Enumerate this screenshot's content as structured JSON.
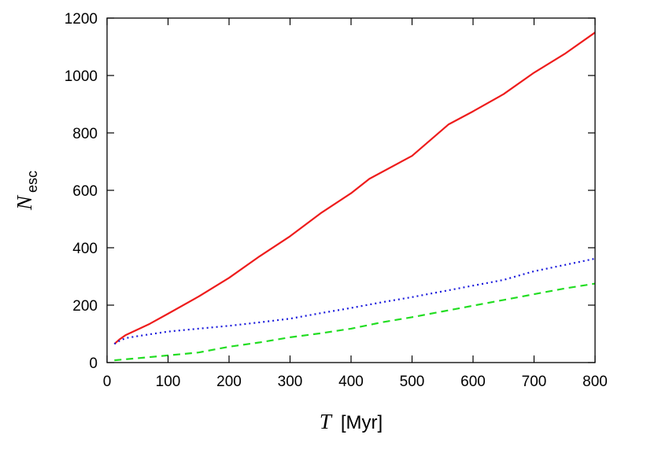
{
  "chart_data": {
    "type": "line",
    "xlabel": {
      "symbol": "T",
      "unit": "[Myr]"
    },
    "ylabel": {
      "symbol": "N",
      "subscript": "esc"
    },
    "xlim": [
      0,
      800
    ],
    "ylim": [
      0,
      1200
    ],
    "xticks": [
      0,
      100,
      200,
      300,
      400,
      500,
      600,
      700,
      800
    ],
    "yticks": [
      0,
      200,
      400,
      600,
      800,
      1000,
      1200
    ],
    "grid": false,
    "legend": "none",
    "series": [
      {
        "color": "#ee1c1c",
        "style": "solid",
        "points": [
          [
            12,
            65
          ],
          [
            20,
            80
          ],
          [
            30,
            95
          ],
          [
            50,
            115
          ],
          [
            70,
            135
          ],
          [
            100,
            170
          ],
          [
            150,
            230
          ],
          [
            200,
            295
          ],
          [
            250,
            370
          ],
          [
            300,
            440
          ],
          [
            350,
            520
          ],
          [
            400,
            590
          ],
          [
            430,
            640
          ],
          [
            500,
            720
          ],
          [
            560,
            830
          ],
          [
            600,
            875
          ],
          [
            650,
            935
          ],
          [
            700,
            1010
          ],
          [
            750,
            1075
          ],
          [
            800,
            1150
          ]
        ]
      },
      {
        "color": "#1a1adc",
        "style": "dotted",
        "points": [
          [
            12,
            65
          ],
          [
            20,
            75
          ],
          [
            30,
            85
          ],
          [
            50,
            92
          ],
          [
            100,
            108
          ],
          [
            150,
            118
          ],
          [
            200,
            128
          ],
          [
            250,
            140
          ],
          [
            300,
            153
          ],
          [
            350,
            172
          ],
          [
            400,
            190
          ],
          [
            450,
            210
          ],
          [
            500,
            228
          ],
          [
            550,
            248
          ],
          [
            600,
            268
          ],
          [
            650,
            288
          ],
          [
            700,
            318
          ],
          [
            750,
            340
          ],
          [
            800,
            362
          ]
        ]
      },
      {
        "color": "#22dd22",
        "style": "dashed",
        "points": [
          [
            12,
            8
          ],
          [
            50,
            15
          ],
          [
            100,
            25
          ],
          [
            150,
            35
          ],
          [
            200,
            55
          ],
          [
            250,
            70
          ],
          [
            300,
            88
          ],
          [
            350,
            102
          ],
          [
            400,
            118
          ],
          [
            450,
            140
          ],
          [
            500,
            158
          ],
          [
            550,
            178
          ],
          [
            600,
            198
          ],
          [
            650,
            218
          ],
          [
            700,
            238
          ],
          [
            750,
            258
          ],
          [
            800,
            275
          ]
        ]
      }
    ]
  }
}
